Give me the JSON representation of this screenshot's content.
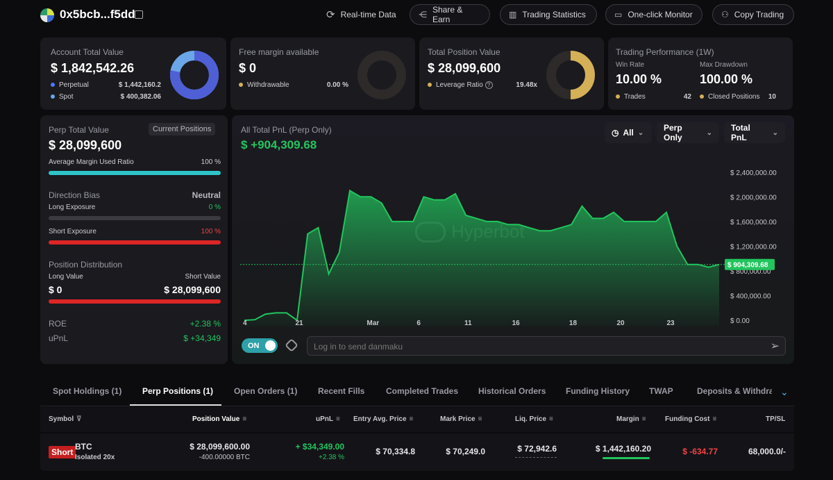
{
  "header": {
    "address": "0x5bcb...f5dd",
    "buttons": [
      "Real-time Data",
      "Share & Earn",
      "Trading Statistics",
      "One-click Monitor",
      "Copy Trading"
    ]
  },
  "account": {
    "title": "Account Total Value",
    "value": "$ 1,842,542.26",
    "rows": [
      {
        "label": "Perpetual",
        "value": "$ 1,442,160.2"
      },
      {
        "label": "Spot",
        "value": "$ 400,382.06"
      }
    ],
    "perp_share": 0.78
  },
  "margin": {
    "title": "Free margin available",
    "value": "$ 0",
    "row_label": "Withdrawable",
    "row_value": "0.00 %"
  },
  "position": {
    "title": "Total Position Value",
    "value": "$ 28,099,600",
    "row_label": "Leverage Ratio",
    "row_value": "19.48x"
  },
  "performance": {
    "title": "Trading Performance (1W)",
    "win_rate_label": "Win Rate",
    "win_rate": "10.00 %",
    "drawdown_label": "Max Drawdown",
    "drawdown": "100.00 %",
    "trades_label": "Trades",
    "trades": "42",
    "closed_label": "Closed Positions",
    "closed": "10"
  },
  "perp_panel": {
    "title": "Perp Total Value",
    "badge": "Current Positions",
    "value": "$ 28,099,600",
    "avg_margin_label": "Average Margin Used Ratio",
    "avg_margin_value": "100 %",
    "bias_label": "Direction Bias",
    "bias_value": "Neutral",
    "long_label": "Long Exposure",
    "long_value": "0 %",
    "short_label": "Short Exposure",
    "short_value": "100 %",
    "dist_label": "Position Distribution",
    "long_val_label": "Long Value",
    "short_val_label": "Short Value",
    "long_val": "$ 0",
    "short_val": "$ 28,099,600",
    "roe_label": "ROE",
    "roe": "+2.38 %",
    "upnl_label": "uPnL",
    "upnl": "$ +34,349"
  },
  "chart_panel": {
    "title": "All Total PnL (Perp Only)",
    "value": "$ +904,309.68",
    "filters": [
      "All",
      "Perp Only",
      "Total PnL"
    ],
    "watermark": "Hyperbot",
    "toggle": "ON",
    "danmaku_placeholder": "Log in to send danmaku"
  },
  "chart_data": {
    "type": "area",
    "title": "All Total PnL (Perp Only)",
    "xlabel": "",
    "ylabel": "",
    "ylim": [
      -100000,
      2600000
    ],
    "x_ticks": [
      "4",
      "21",
      "Mar",
      "6",
      "11",
      "16",
      "18",
      "20",
      "23"
    ],
    "y_ticks": [
      "$ 2,400,000.00",
      "$ 2,000,000.00",
      "$ 1,600,000.00",
      "$ 1,200,000.00",
      "$ 800,000.00",
      "$ 400,000.00",
      "$ 0.00"
    ],
    "y_tick_values": [
      2400000,
      2000000,
      1600000,
      1200000,
      800000,
      400000,
      0
    ],
    "current_label": "$ 904,309.68",
    "current_value": 904309,
    "values": [
      0,
      10000,
      100000,
      120000,
      120000,
      0,
      1400000,
      1500000,
      750000,
      1100000,
      2100000,
      2000000,
      2000000,
      1900000,
      1600000,
      1600000,
      1600000,
      2000000,
      1950000,
      1950000,
      2050000,
      1700000,
      1650000,
      1600000,
      1600000,
      1550000,
      1550000,
      1500000,
      1450000,
      1450000,
      1500000,
      1550000,
      1850000,
      1650000,
      1650000,
      1750000,
      1600000,
      1600000,
      1600000,
      1600000,
      1750000,
      1200000,
      904309,
      904309,
      860000,
      904309
    ]
  },
  "tabs": [
    "Spot Holdings (1)",
    "Perp Positions (1)",
    "Open Orders (1)",
    "Recent Fills",
    "Completed Trades",
    "Historical Orders",
    "Funding History",
    "TWAP",
    "Deposits & Withdraw"
  ],
  "table": {
    "headers": [
      "Symbol",
      "Position Value",
      "uPnL",
      "Entry Avg. Price",
      "Mark Price",
      "Liq. Price",
      "Margin",
      "Funding Cost",
      "TP/SL"
    ],
    "row": {
      "side": "Short",
      "symbol": "BTC",
      "mode": "Isolated 20x",
      "position_value": "$ 28,099,600.00",
      "position_size": "-400.00000 BTC",
      "upnl": "+ $34,349.00",
      "upnl_pct": "+2.38 %",
      "entry": "$ 70,334.8",
      "mark": "$ 70,249.0",
      "liq": "$ 72,942.6",
      "margin": "$ 1,442,160.20",
      "funding": "$ -634.77",
      "tpsl": "68,000.0/-"
    }
  },
  "colors": {
    "green": "#22c55e",
    "red": "#ef4444",
    "teal": "#2ec4c8",
    "blue": "#4f7bff",
    "gold": "#d4b057"
  }
}
